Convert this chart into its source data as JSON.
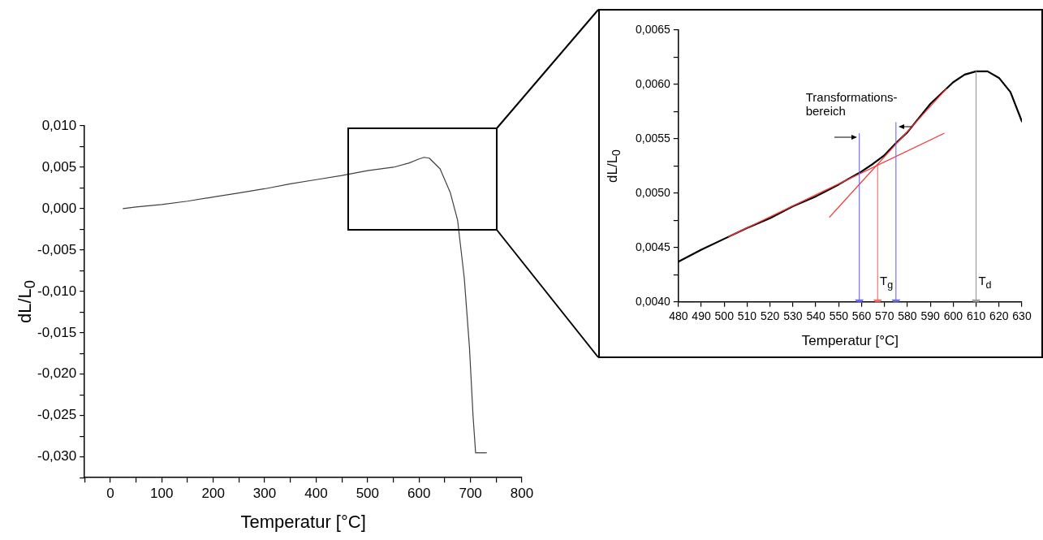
{
  "chart_data": [
    {
      "type": "line",
      "xlabel": "Temperatur [°C]",
      "ylabel": "dL/L$_{0}$",
      "color": "#404040",
      "marker": "none",
      "x": [
        25,
        50,
        100,
        150,
        200,
        250,
        300,
        350,
        400,
        450,
        500,
        550,
        580,
        600,
        610,
        620,
        641,
        661,
        675,
        688,
        698,
        705,
        710,
        731
      ],
      "values": [
        0,
        0.0002,
        0.0005,
        0.0009,
        0.0014,
        0.0019,
        0.0024,
        0.003,
        0.0035,
        0.004,
        0.0046,
        0.005,
        0.0055,
        0.006,
        0.0062,
        0.0061,
        0.0048,
        0.0019,
        -0.0014,
        -0.0084,
        -0.0167,
        -0.025,
        -0.0295,
        -0.0295
      ],
      "xlim": [
        -50,
        800
      ],
      "xticks": [
        {
          "value": -50,
          "label": null
        },
        0,
        {
          "value": 50,
          "label": null
        },
        100,
        {
          "value": 150,
          "label": null
        },
        200,
        {
          "value": 250,
          "label": null
        },
        300,
        {
          "value": 350,
          "label": null
        },
        400,
        {
          "value": 450,
          "label": null
        },
        500,
        {
          "value": 550,
          "label": null
        },
        600,
        {
          "value": 650,
          "label": null
        },
        700,
        {
          "value": 750,
          "label": null
        },
        800
      ],
      "ylim": [
        -0.0325,
        0.01
      ],
      "yticks": [
        {
          "value": -0.0325,
          "label": null
        },
        {
          "value": -0.03,
          "label": "-0,030"
        },
        {
          "value": -0.0275,
          "label": null
        },
        {
          "value": -0.025,
          "label": "-0,025"
        },
        {
          "value": -0.0225,
          "label": null
        },
        {
          "value": -0.02,
          "label": "-0,020"
        },
        {
          "value": -0.0175,
          "label": null
        },
        {
          "value": -0.015,
          "label": "-0,015"
        },
        {
          "value": -0.0125,
          "label": null
        },
        {
          "value": -0.01,
          "label": "-0,010"
        },
        {
          "value": -0.0075,
          "label": null
        },
        {
          "value": -0.005,
          "label": "-0,005"
        },
        {
          "value": -0.0025,
          "label": null
        },
        {
          "value": 0,
          "label": "0,000"
        },
        {
          "value": 0.0025,
          "label": null
        },
        {
          "value": 0.005,
          "label": "0,005"
        },
        {
          "value": 0.0075,
          "label": null
        },
        {
          "value": 0.01,
          "label": "0,010"
        }
      ]
    },
    {
      "type": "line",
      "xlabel": "Temperatur [°C]",
      "ylabel": "dL/L$_{0}$",
      "series": [
        {
          "color": "#000000",
          "marker": "none",
          "x": [
            480,
            490,
            500,
            510,
            520,
            530,
            540,
            550,
            560,
            565,
            570,
            575,
            580,
            590,
            600,
            605,
            610,
            615,
            620,
            625,
            630
          ],
          "values": [
            0.00437,
            0.00448,
            0.00458,
            0.00468,
            0.00477,
            0.00488,
            0.00497,
            0.00508,
            0.0052,
            0.00527,
            0.00535,
            0.00546,
            0.00556,
            0.00582,
            0.00602,
            0.00609,
            0.00612,
            0.00612,
            0.00606,
            0.00593,
            0.00566
          ]
        },
        {
          "color": "#ff3333",
          "marker": "none",
          "x": [
            502,
            596
          ],
          "values": [
            0.0046,
            0.00555
          ]
        },
        {
          "color": "#ff3333",
          "marker": "none",
          "x": [
            546,
            597
          ],
          "values": [
            0.00478,
            0.00596
          ]
        },
        {
          "color": "#6666ff",
          "marker": "triangle",
          "x": [
            559,
            559
          ],
          "values": [
            0.00555,
            0.004
          ]
        },
        {
          "color": "#ff6666",
          "marker": "triangle",
          "x": [
            567,
            567
          ],
          "values": [
            0.00525,
            0.004
          ]
        },
        {
          "color": "#6666ff",
          "marker": "triangle",
          "x": [
            575,
            575
          ],
          "values": [
            0.00565,
            0.004
          ]
        },
        {
          "color": "#999999",
          "marker": "triangle",
          "x": [
            610,
            610
          ],
          "values": [
            0.00612,
            0.004
          ]
        }
      ],
      "annotations": [
        "Transformations-\nbereich",
        {
          "text": "T$_{g}$",
          "x": 568,
          "y": 0.0041
        },
        {
          "text": "T$_{d}$",
          "x": 611,
          "y": 0.0041
        }
      ],
      "xlim": [
        480,
        630
      ],
      "xticks": [
        480,
        490,
        500,
        510,
        520,
        530,
        540,
        550,
        560,
        570,
        580,
        590,
        600,
        610,
        620,
        630
      ],
      "ylim": [
        0.004,
        0.0065
      ],
      "yticks": [
        {
          "value": 0.004,
          "label": "0,0040"
        },
        {
          "value": 0.00425,
          "label": null
        },
        {
          "value": 0.0045,
          "label": "0,0045"
        },
        {
          "value": 0.00475,
          "label": null
        },
        {
          "value": 0.005,
          "label": "0,0050"
        },
        {
          "value": 0.00525,
          "label": null
        },
        {
          "value": 0.0055,
          "label": "0,0055"
        },
        {
          "value": 0.00575,
          "label": null
        },
        {
          "value": 0.006,
          "label": "0,0060"
        },
        {
          "value": 0.00625,
          "label": null
        },
        {
          "value": 0.0065,
          "label": "0,0065"
        }
      ]
    }
  ]
}
